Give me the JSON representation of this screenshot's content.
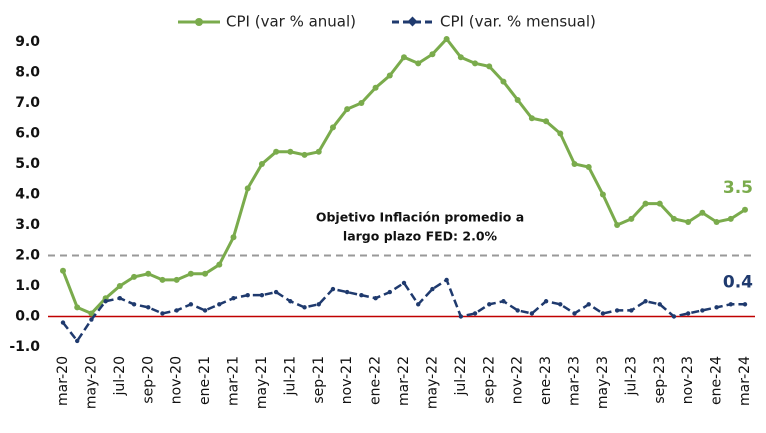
{
  "chart_data": {
    "type": "line",
    "categories": [
      "mar-20",
      null,
      "may-20",
      null,
      "jul-20",
      null,
      "sep-20",
      null,
      "nov-20",
      null,
      "ene-21",
      null,
      "mar-21",
      null,
      "may-21",
      null,
      "jul-21",
      null,
      "sep-21",
      null,
      "nov-21",
      null,
      "ene-22",
      null,
      "mar-22",
      null,
      "may-22",
      null,
      "jul-22",
      null,
      "sep-22",
      null,
      "nov-22",
      null,
      "ene-23",
      null,
      "mar-23",
      null,
      "may-23",
      null,
      "jul-23",
      null,
      "sep-23",
      null,
      "nov-23",
      null,
      "ene-24",
      null,
      "mar-24"
    ],
    "series": [
      {
        "name": "CPI (var % anual)",
        "color": "#7aab4c",
        "values": [
          1.5,
          0.3,
          0.1,
          0.6,
          1.0,
          1.3,
          1.4,
          1.2,
          1.2,
          1.4,
          1.4,
          1.7,
          2.6,
          4.2,
          5.0,
          5.4,
          5.4,
          5.3,
          5.4,
          6.2,
          6.8,
          7.0,
          7.5,
          7.9,
          8.5,
          8.3,
          8.6,
          9.1,
          8.5,
          8.3,
          8.2,
          7.7,
          7.1,
          6.5,
          6.4,
          6.0,
          5.0,
          4.9,
          4.0,
          3.0,
          3.2,
          3.7,
          3.7,
          3.2,
          3.1,
          3.4,
          3.1,
          3.2,
          3.5
        ]
      },
      {
        "name": "CPI (var. % mensual)",
        "color": "#1f3a6e",
        "values": [
          -0.2,
          -0.8,
          -0.1,
          0.5,
          0.6,
          0.4,
          0.3,
          0.1,
          0.2,
          0.4,
          0.2,
          0.4,
          0.6,
          0.7,
          0.7,
          0.8,
          0.5,
          0.3,
          0.4,
          0.9,
          0.8,
          0.7,
          0.6,
          0.8,
          1.1,
          0.4,
          0.9,
          1.2,
          0.0,
          0.1,
          0.4,
          0.5,
          0.2,
          0.1,
          0.5,
          0.4,
          0.1,
          0.4,
          0.1,
          0.2,
          0.2,
          0.5,
          0.4,
          0.0,
          0.1,
          0.2,
          0.3,
          0.4,
          0.4
        ]
      }
    ],
    "ylim": [
      -1,
      9
    ],
    "yticks": [
      {
        "value": -1,
        "label": "-1.0"
      },
      {
        "value": 0,
        "label": "0.0"
      },
      {
        "value": 1,
        "label": "1.0"
      },
      {
        "value": 2,
        "label": "2.0"
      },
      {
        "value": 3,
        "label": "3.0"
      },
      {
        "value": 4,
        "label": "4.0"
      },
      {
        "value": 5,
        "label": "5.0"
      },
      {
        "value": 6,
        "label": "6.0"
      },
      {
        "value": 7,
        "label": "7.0"
      },
      {
        "value": 8,
        "label": "8.0"
      },
      {
        "value": 9,
        "label": "9.0"
      }
    ],
    "reference_line": {
      "value": 2,
      "color": "#999999",
      "annotation": [
        "Objetivo Inflación promedio a",
        "largo plazo FED: 2.0%"
      ]
    },
    "zero_line_color": "#c00000",
    "grid": false
  }
}
